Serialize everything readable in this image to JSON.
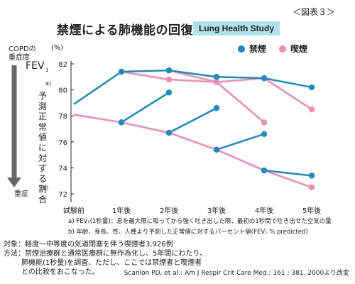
{
  "header": {
    "title": "禁煙による肺機能の回復",
    "badge": "Lung Health Study",
    "figure_label": "＜図表３＞"
  },
  "y_axis_text": {
    "copd_line1": "COPDの",
    "copd_line2": "重症度",
    "fev_main": "FEV",
    "fev_sub": "1",
    "fev_note": "a)",
    "unit": "(%)",
    "severe": "重症",
    "vertical_label": "予測正常値に対する割合",
    "vertical_note": "b)"
  },
  "colors": {
    "quit": "#1a8cc3",
    "smoker": "#f08cb2",
    "arrow": "#666666",
    "badge_bg": "#aee3ea"
  },
  "notes": {
    "a": "a) FEV₁(1秒量)：息を最大限に吸ってから強く吐き出した際、最初の1秒間で吐き出せた空気の量",
    "b": "b) 年齢、身長、性、人種より予測した正常値に対するパーセント値(FEV₁ % predicted)"
  },
  "meta": {
    "target": "対象：軽度～中等度の気道閉塞を伴う喫煙者3,926例",
    "method_line1": "方法：禁煙治療群と通常医療群に無作為化し、5年間にわたり、",
    "method_line2": "肺機能(1秒量)を調査、ただし、ここでは禁煙者と喫煙者",
    "method_line3": "との比較をおこなった。",
    "citation": "Scanlon PD, et al.: Am J Respir Crit Care Med.: 161 : 381, 2000より改変"
  },
  "chart_data": {
    "type": "line",
    "categories": [
      "試験前",
      "1年後",
      "2年後",
      "3年後",
      "4年後",
      "5年後"
    ],
    "ylim": [
      72,
      83
    ],
    "yticks": [
      72,
      74,
      76,
      78,
      80,
      82
    ],
    "xlabel": "",
    "ylabel": "予測正常値に対する割合",
    "legend": [
      "禁煙",
      "喫煙"
    ],
    "legend_position": "top-right",
    "grid": false,
    "series": [
      {
        "name": "禁煙",
        "group": "quit",
        "points": [
          [
            0,
            78.9
          ],
          [
            1,
            81.4
          ],
          [
            2,
            81.5
          ],
          [
            3,
            81.0
          ],
          [
            4,
            80.9
          ],
          [
            5,
            80.2
          ]
        ]
      },
      {
        "name": "喫煙",
        "group": "smoker",
        "points": [
          [
            0,
            78.1
          ],
          [
            1,
            77.5
          ],
          [
            2,
            76.7
          ],
          [
            3,
            75.4
          ],
          [
            4,
            73.8
          ],
          [
            5,
            72.5
          ]
        ]
      },
      {
        "name": "喫煙",
        "group": "smoker",
        "points": [
          [
            1,
            81.4
          ],
          [
            2,
            80.8
          ],
          [
            3,
            80.6
          ],
          [
            4,
            77.5
          ]
        ]
      },
      {
        "name": "喫煙",
        "group": "smoker",
        "points": [
          [
            2,
            81.5
          ],
          [
            3,
            80.6
          ],
          [
            4,
            80.9
          ],
          [
            5,
            78.5
          ]
        ]
      },
      {
        "name": "禁煙",
        "group": "quit",
        "points": [
          [
            1,
            77.5
          ],
          [
            2,
            79.8
          ]
        ]
      },
      {
        "name": "禁煙",
        "group": "quit",
        "points": [
          [
            2,
            76.7
          ],
          [
            3,
            78.6
          ]
        ]
      },
      {
        "name": "禁煙",
        "group": "quit",
        "points": [
          [
            3,
            75.4
          ],
          [
            4,
            76.6
          ]
        ]
      },
      {
        "name": "禁煙",
        "group": "quit",
        "points": [
          [
            4,
            73.8
          ],
          [
            5,
            73.4
          ]
        ]
      }
    ]
  }
}
